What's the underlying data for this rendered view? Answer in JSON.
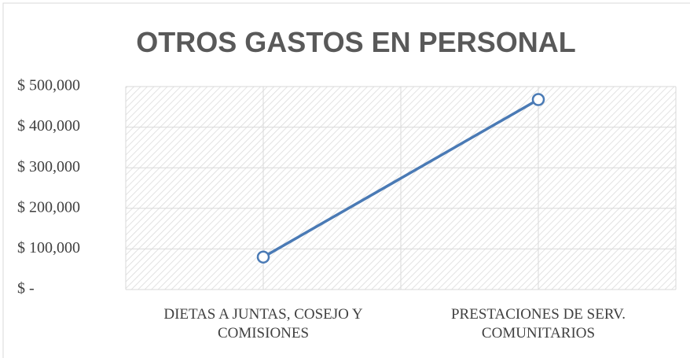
{
  "chart_data": {
    "type": "line",
    "title": "OTROS GASTOS EN PERSONAL",
    "categories": [
      "DIETAS A JUNTAS, COSEJO Y COMISIONES",
      "PRESTACIONES DE SERV. COMUNITARIOS"
    ],
    "series": [
      {
        "name": "OTROS GASTOS EN PERSONAL",
        "color": "#4a7ab5",
        "values": [
          80000,
          468000
        ]
      }
    ],
    "ylim": [
      0,
      500000
    ],
    "yticks": [
      {
        "value": 0,
        "label": "$ -"
      },
      {
        "value": 100000,
        "label": "$ 100,000"
      },
      {
        "value": 200000,
        "label": "$ 200,000"
      },
      {
        "value": 300000,
        "label": "$ 300,000"
      },
      {
        "value": 400000,
        "label": "$ 400,000"
      },
      {
        "value": 500000,
        "label": "$ 500,000"
      }
    ],
    "grid": true
  }
}
